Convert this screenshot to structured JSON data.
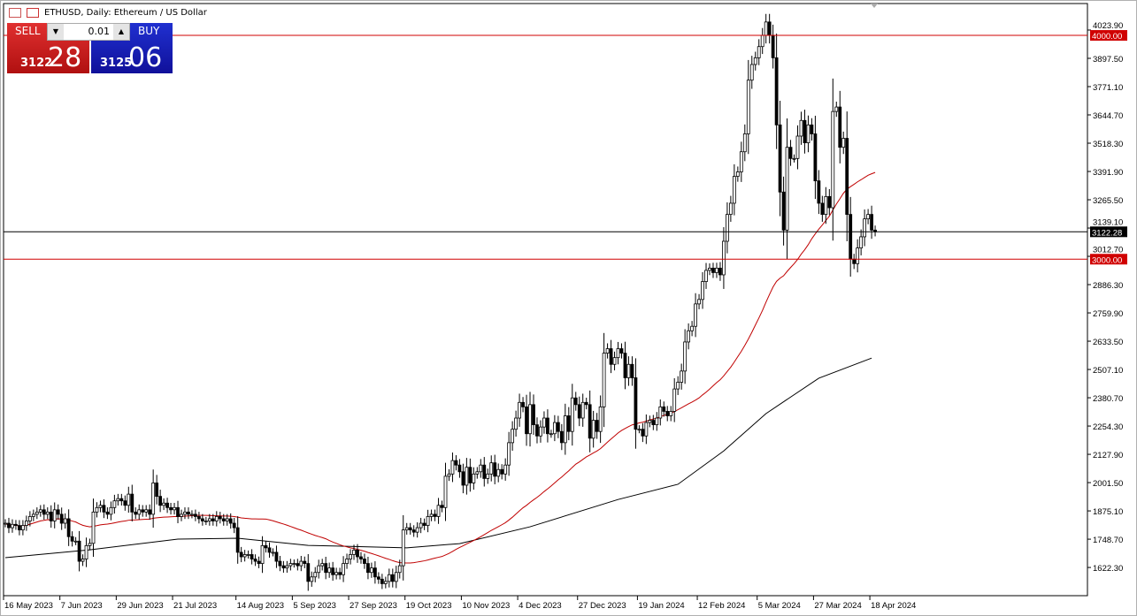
{
  "header": {
    "title": "ETHUSD, Daily:  Ethereum / US Dollar"
  },
  "trade_panel": {
    "sell_label": "SELL",
    "buy_label": "BUY",
    "lot": "0.01",
    "bid_main": "3122",
    "bid_pips": "28",
    "ask_main": "3125",
    "ask_pips": "06",
    "sell_color": "#d42020",
    "buy_color": "#1a1ab8"
  },
  "chart_data": {
    "type": "candlestick",
    "symbol": "ETHUSD",
    "timeframe": "Daily",
    "ylim": [
      1560,
      4110
    ],
    "y_ticks": [
      "4023.90",
      "3897.50",
      "3771.10",
      "3644.70",
      "3518.30",
      "3391.90",
      "3265.50",
      "3139.10",
      "3012.70",
      "2886.30",
      "2759.90",
      "2633.50",
      "2507.10",
      "2380.70",
      "2254.30",
      "2127.90",
      "2001.50",
      "1875.10",
      "1748.70",
      "1622.30"
    ],
    "x_ticks": [
      "16 May 2023",
      "7 Jun 2023",
      "29 Jun 2023",
      "21 Jul 2023",
      "14 Aug 2023",
      "5 Sep 2023",
      "27 Sep 2023",
      "19 Oct 2023",
      "10 Nov 2023",
      "4 Dec 2023",
      "27 Dec 2023",
      "19 Jan 2024",
      "12 Feb 2024",
      "5 Mar 2024",
      "27 Mar 2024",
      "18 Apr 2024"
    ],
    "x_tick_bars": [
      0,
      16,
      32,
      48,
      66,
      82,
      98,
      114,
      130,
      146,
      163,
      180,
      197,
      214,
      230,
      246
    ],
    "closes": [
      1820,
      1800,
      1815,
      1810,
      1790,
      1810,
      1830,
      1850,
      1860,
      1870,
      1880,
      1860,
      1870,
      1830,
      1880,
      1860,
      1820,
      1840,
      1760,
      1740,
      1740,
      1650,
      1660,
      1720,
      1730,
      1870,
      1890,
      1900,
      1870,
      1860,
      1890,
      1920,
      1930,
      1920,
      1900,
      1950,
      1870,
      1860,
      1880,
      1870,
      1880,
      1860,
      2000,
      1940,
      1900,
      1910,
      1890,
      1880,
      1890,
      1850,
      1860,
      1870,
      1860,
      1860,
      1850,
      1840,
      1830,
      1830,
      1840,
      1830,
      1850,
      1840,
      1830,
      1840,
      1820,
      1800,
      1690,
      1670,
      1680,
      1680,
      1660,
      1650,
      1640,
      1720,
      1710,
      1690,
      1690,
      1650,
      1630,
      1620,
      1630,
      1640,
      1640,
      1630,
      1650,
      1640,
      1560,
      1580,
      1600,
      1630,
      1640,
      1600,
      1620,
      1590,
      1600,
      1590,
      1640,
      1660,
      1680,
      1700,
      1670,
      1660,
      1640,
      1600,
      1620,
      1580,
      1570,
      1550,
      1560,
      1590,
      1560,
      1600,
      1630,
      1790,
      1800,
      1790,
      1780,
      1800,
      1820,
      1810,
      1850,
      1860,
      1850,
      1900,
      1890,
      2030,
      2040,
      2100,
      2080,
      2050,
      1990,
      2070,
      2000,
      2040,
      2050,
      2080,
      2020,
      2040,
      2090,
      2030,
      2060,
      2040,
      2080,
      2180,
      2240,
      2290,
      2360,
      2340,
      2220,
      2350,
      2260,
      2210,
      2250,
      2290,
      2220,
      2220,
      2270,
      2230,
      2180,
      2300,
      2230,
      2380,
      2350,
      2290,
      2360,
      2350,
      2200,
      2280,
      2230,
      2340,
      2580,
      2600,
      2530,
      2560,
      2600,
      2580,
      2470,
      2530,
      2470,
      2240,
      2240,
      2210,
      2270,
      2280,
      2260,
      2290,
      2340,
      2320,
      2300,
      2320,
      2420,
      2450,
      2500,
      2630,
      2680,
      2700,
      2800,
      2820,
      2900,
      2950,
      2960,
      2940,
      2960,
      2930,
      3080,
      3200,
      3250,
      3370,
      3390,
      3480,
      3560,
      3800,
      3870,
      3900,
      3950,
      4000,
      4060,
      4000,
      3900,
      3600,
      3300,
      3130,
      3500,
      3450,
      3450,
      3550,
      3620,
      3520,
      3600,
      3560,
      3350,
      3250,
      3200,
      3280,
      3230,
      3660,
      3680,
      3500,
      3540,
      3200,
      3000,
      2980,
      3050,
      3100,
      3180,
      3200,
      3130,
      3122.28
    ],
    "ma_fast_color": "#c00000",
    "ma_slow": {
      "bars": [
        0,
        24,
        49,
        66,
        86,
        114,
        129,
        149,
        174,
        191,
        204,
        216,
        231,
        246
      ],
      "values": [
        1666,
        1701,
        1749,
        1753,
        1721,
        1710,
        1729,
        1804,
        1926,
        1994,
        2143,
        2310,
        2468,
        2558
      ]
    },
    "levels": [
      {
        "value": 4000,
        "label": "4000.00",
        "color": "#d00000"
      },
      {
        "value": 3000,
        "label": "3000.00",
        "color": "#d00000"
      },
      {
        "value": 3122.28,
        "label": "3122.28",
        "color": "#000000"
      }
    ]
  }
}
